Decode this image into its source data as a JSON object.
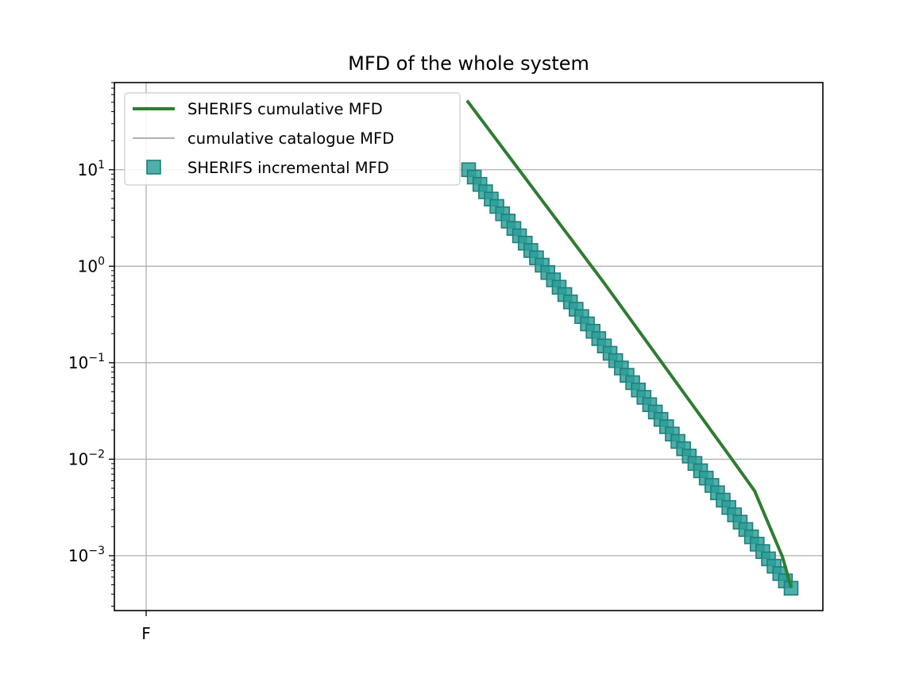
{
  "chart_data": {
    "type": "line",
    "title": "MFD of the whole system",
    "xlabel": "",
    "ylabel": "",
    "y_scale": "log",
    "ylim": [
      0.00027,
      80
    ],
    "y_ticks": [
      {
        "value": 10,
        "base": "10",
        "exp": "1"
      },
      {
        "value": 1,
        "base": "10",
        "exp": "0"
      },
      {
        "value": 0.1,
        "base": "10",
        "exp": "−1"
      },
      {
        "value": 0.01,
        "base": "10",
        "exp": "−2"
      },
      {
        "value": 0.001,
        "base": "10",
        "exp": "−3"
      }
    ],
    "x_tick_labels": [
      "F"
    ],
    "grid": true,
    "legend_position": "upper-left",
    "legend": [
      {
        "label": "SHERIFS cumulative MFD",
        "color": "#2e7d32",
        "marker": "line-thick"
      },
      {
        "label": "cumulative catalogue MFD",
        "color": "#999999",
        "marker": "line-thin"
      },
      {
        "label": "SHERIFS incremental MFD",
        "color": "#2a9d97",
        "marker": "square"
      }
    ],
    "series": [
      {
        "name": "SHERIFS cumulative MFD",
        "color": "#2e7d32",
        "y": [
          52,
          0.68,
          0.0104,
          0.0047,
          0.00098,
          0.00047
        ]
      },
      {
        "name": "SHERIFS incremental MFD",
        "color": "#2a9d97",
        "y_start": 10,
        "y_end": 0.00046,
        "count": 58
      }
    ]
  }
}
